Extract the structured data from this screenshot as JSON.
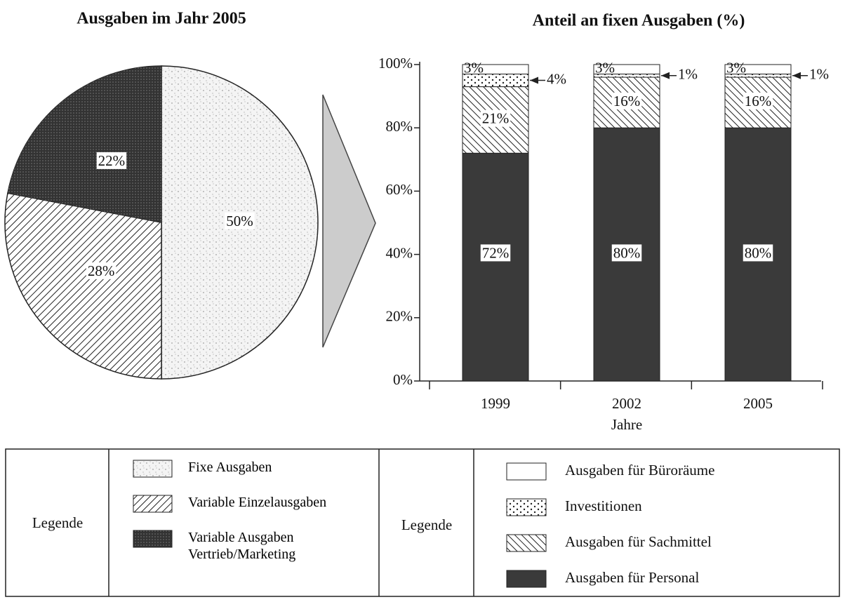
{
  "chart_data": [
    {
      "type": "pie",
      "title": "Ausgaben im Jahr 2005",
      "categories": [
        "Fixe Ausgaben",
        "Variable Einzelausgaben",
        "Variable Ausgaben Vertrieb/Marketing"
      ],
      "values": [
        50,
        28,
        22
      ],
      "value_labels": [
        "50%",
        "28%",
        "22%"
      ],
      "colors": [
        "#f4f4f4",
        "#ffffff",
        "#3c3c3c"
      ],
      "legend_title": "Legende"
    },
    {
      "type": "stacked_bar",
      "title": "Anteil an fixen Ausgaben (%)",
      "categories": [
        "1999",
        "2002",
        "2005"
      ],
      "xlabel": "Jahre",
      "series": [
        {
          "name": "Ausgaben für Personal",
          "color": "#3a3a3a",
          "values": [
            72,
            80,
            80
          ],
          "value_labels": [
            "72%",
            "80%",
            "80%"
          ]
        },
        {
          "name": "Ausgaben für Sachmittel",
          "color": "#ffffff",
          "values": [
            21,
            16,
            16
          ],
          "value_labels": [
            "21%",
            "16%",
            "16%"
          ]
        },
        {
          "name": "Investitionen",
          "color": "#ffffff",
          "values": [
            4,
            1,
            1
          ],
          "value_labels": [
            "4%",
            "1%",
            "1%"
          ]
        },
        {
          "name": "Ausgaben für Büroräume",
          "color": "#ffffff",
          "values": [
            3,
            3,
            3
          ],
          "value_labels": [
            "3%",
            "3%",
            "3%"
          ]
        }
      ],
      "ylim": [
        0,
        100
      ],
      "yticks": [
        {
          "value": 0,
          "label": "0%"
        },
        {
          "value": 20,
          "label": "20%"
        },
        {
          "value": 40,
          "label": "40%"
        },
        {
          "value": 60,
          "label": "60%"
        },
        {
          "value": 80,
          "label": "80%"
        },
        {
          "value": 100,
          "label": "100%"
        }
      ],
      "legend_title": "Legende"
    }
  ]
}
